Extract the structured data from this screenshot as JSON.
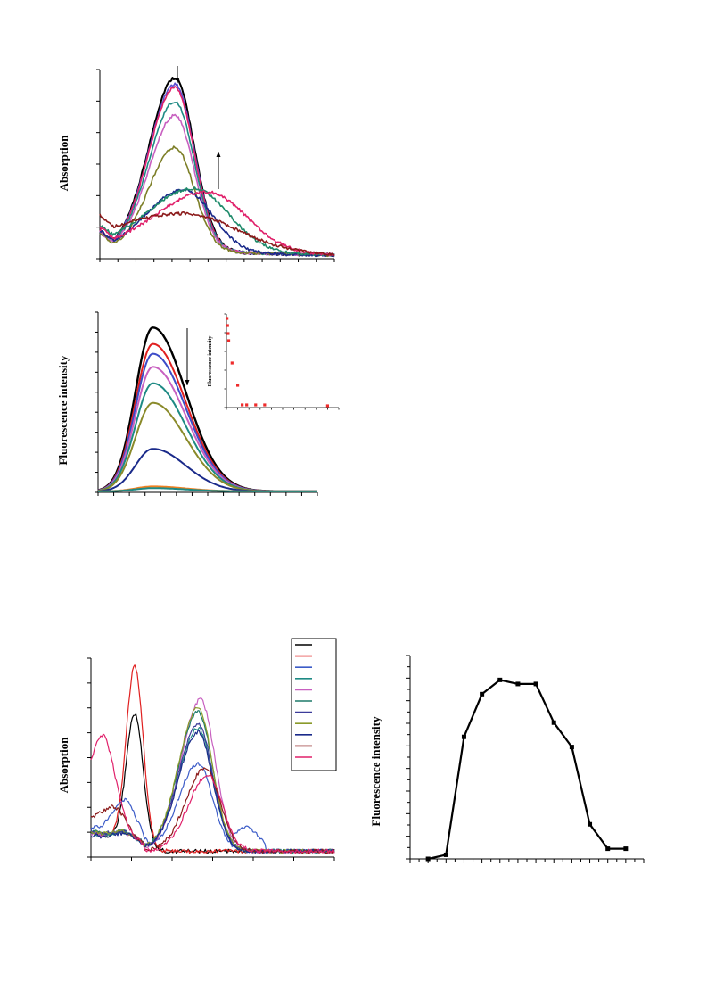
{
  "panels": {
    "a_absorption": {
      "ylabel": "Absorption"
    },
    "b_fluorescence": {
      "ylabel": "Fluorescence intensity",
      "inset_ylabel": "Fluorescence intensity"
    },
    "c_absorption": {
      "ylabel": "Absorption"
    },
    "d_fluorescence": {
      "ylabel": "Fluorescence intensity"
    }
  },
  "chart_data": [
    {
      "id": "panel-a",
      "type": "line",
      "title": "",
      "xlabel": "",
      "ylabel": "Absorption",
      "xlim": [
        0,
        100
      ],
      "ylim": [
        0,
        1.2
      ],
      "grid": false,
      "annotations": [
        "down-arrow at main peak",
        "up-arrow at shoulder"
      ],
      "series": [
        {
          "color": "#000000",
          "peak_x": 32,
          "peak_y": 1.1,
          "width": 11,
          "shoulder_y": 0.0,
          "tail": 0.05
        },
        {
          "color": "#5b4fd0",
          "peak_x": 32,
          "peak_y": 1.06,
          "width": 11,
          "shoulder_y": 0.0,
          "tail": 0.05
        },
        {
          "color": "#e0206a",
          "peak_x": 32,
          "peak_y": 1.04,
          "width": 11,
          "shoulder_y": 0.0,
          "tail": 0.05
        },
        {
          "color": "#1e8a84",
          "peak_x": 32,
          "peak_y": 0.95,
          "width": 11,
          "shoulder_y": 0.0,
          "tail": 0.05
        },
        {
          "color": "#c860c0",
          "peak_x": 32,
          "peak_y": 0.86,
          "width": 11,
          "shoulder_y": 0.0,
          "tail": 0.05
        },
        {
          "color": "#7d7f28",
          "peak_x": 32,
          "peak_y": 0.66,
          "width": 11,
          "shoulder_y": 0.0,
          "tail": 0.05
        },
        {
          "color": "#1a2a8a",
          "peak_x": 36,
          "peak_y": 0.4,
          "width": 16,
          "shoulder_y": 0.0,
          "tail": 0.04
        },
        {
          "color": "#1e8a6a",
          "peak_x": 40,
          "peak_y": 0.4,
          "width": 20,
          "shoulder_y": 0.0,
          "tail": 0.05
        },
        {
          "color": "#e0206a",
          "peak_x": 46,
          "peak_y": 0.38,
          "width": 22,
          "shoulder_y": 0.0,
          "tail": 0.05
        },
        {
          "color": "#8b1a1a",
          "peak_x": 36,
          "peak_y": 0.24,
          "width": 30,
          "shoulder_y": 0.0,
          "tail": 0.05
        }
      ]
    },
    {
      "id": "panel-b",
      "type": "line",
      "title": "",
      "xlabel": "",
      "ylabel": "Fluorescence intensity",
      "xlim": [
        0,
        100
      ],
      "ylim": [
        0,
        1.1
      ],
      "grid": false,
      "annotations": [
        "down-arrow"
      ],
      "series": [
        {
          "color": "#000000",
          "peak": 1.0
        },
        {
          "color": "#e02020",
          "peak": 0.9
        },
        {
          "color": "#3c4cc8",
          "peak": 0.84
        },
        {
          "color": "#c860c0",
          "peak": 0.76
        },
        {
          "color": "#1e8a84",
          "peak": 0.66
        },
        {
          "color": "#8a8a2a",
          "peak": 0.54
        },
        {
          "color": "#1a2a8a",
          "peak": 0.26
        },
        {
          "color": "#f08020",
          "peak": 0.03
        },
        {
          "color": "#1e8a84",
          "peak": 0.02
        }
      ],
      "inset": {
        "type": "scatter",
        "ylabel": "Fluorescence intensity",
        "xlim": [
          0,
          10
        ],
        "ylim": [
          0,
          1.05
        ],
        "points": [
          [
            0.05,
            1.0
          ],
          [
            0.1,
            0.92
          ],
          [
            0.15,
            0.83
          ],
          [
            0.2,
            0.75
          ],
          [
            0.5,
            0.5
          ],
          [
            1.0,
            0.25
          ],
          [
            1.4,
            0.03
          ],
          [
            1.8,
            0.03
          ],
          [
            2.6,
            0.03
          ],
          [
            3.4,
            0.03
          ],
          [
            9.0,
            0.02
          ]
        ]
      }
    },
    {
      "id": "panel-c",
      "type": "line",
      "title": "",
      "xlabel": "",
      "ylabel": "Absorption",
      "xlim": [
        0,
        100
      ],
      "ylim": [
        0,
        1.0
      ],
      "grid": false,
      "legend_position": "top-right",
      "legend_swatches": [
        "#000000",
        "#e02020",
        "#3c5cc8",
        "#1e8a84",
        "#c860c0",
        "#1e7a6a",
        "#3c3c9a",
        "#8a9a2a",
        "#1a2a8a",
        "#8b1a1a",
        "#e0206a"
      ],
      "series": [
        {
          "color": "#000000",
          "p1x": 18,
          "p1y": 0.66,
          "p2x": 0,
          "p2y": 0.0,
          "base": 0.1
        },
        {
          "color": "#e02020",
          "p1x": 18,
          "p1y": 0.9,
          "p2x": 0,
          "p2y": 0.0,
          "base": 0.1
        },
        {
          "color": "#3c5cc8",
          "p1x": 14,
          "p1y": 0.2,
          "p2x": 44,
          "p2y": 0.44,
          "base": 0.12
        },
        {
          "color": "#1e8a84",
          "p1x": 14,
          "p1y": 0.05,
          "p2x": 44,
          "p2y": 0.62,
          "base": 0.09
        },
        {
          "color": "#c860c0",
          "p1x": 14,
          "p1y": 0.05,
          "p2x": 45,
          "p2y": 0.76,
          "base": 0.09
        },
        {
          "color": "#1e7a6a",
          "p1x": 14,
          "p1y": 0.05,
          "p2x": 44,
          "p2y": 0.7,
          "base": 0.1
        },
        {
          "color": "#3c3c9a",
          "p1x": 14,
          "p1y": 0.05,
          "p2x": 44,
          "p2y": 0.64,
          "base": 0.1
        },
        {
          "color": "#8a9a2a",
          "p1x": 14,
          "p1y": 0.05,
          "p2x": 44,
          "p2y": 0.72,
          "base": 0.1
        },
        {
          "color": "#1a2a8a",
          "p1x": 14,
          "p1y": 0.05,
          "p2x": 44,
          "p2y": 0.6,
          "base": 0.08
        },
        {
          "color": "#8b1a1a",
          "p1x": 10,
          "p1y": 0.12,
          "p2x": 47,
          "p2y": 0.42,
          "base": 0.16
        },
        {
          "color": "#e0206a",
          "p1x": 5,
          "p1y": 0.42,
          "p2x": 48,
          "p2y": 0.38,
          "base": 0.2
        }
      ]
    },
    {
      "id": "panel-d",
      "type": "line",
      "title": "",
      "xlabel": "",
      "ylabel": "Fluorescence intensity",
      "xlim": [
        0,
        13
      ],
      "ylim": [
        0,
        1.0
      ],
      "grid": false,
      "marker": "square",
      "series": [
        {
          "color": "#000000",
          "x": [
            1,
            2,
            3,
            4,
            5,
            6,
            7,
            8,
            9,
            10,
            11,
            12
          ],
          "values": [
            0.0,
            0.02,
            0.6,
            0.81,
            0.88,
            0.86,
            0.86,
            0.67,
            0.55,
            0.17,
            0.05,
            0.05
          ]
        }
      ]
    }
  ]
}
